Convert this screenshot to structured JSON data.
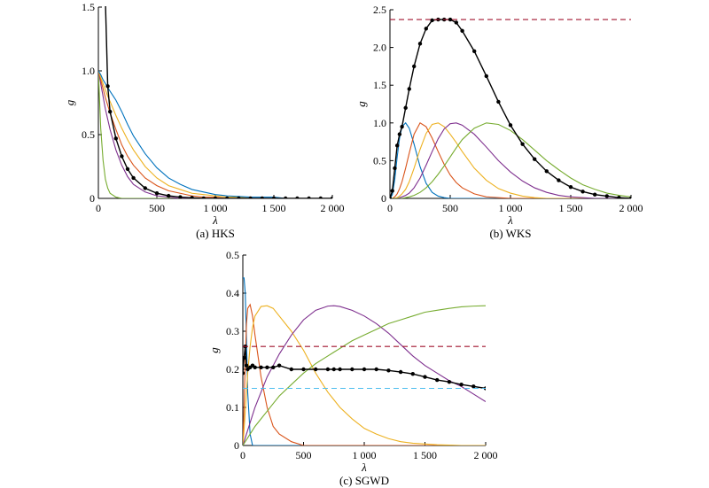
{
  "chart_data": [
    {
      "type": "line",
      "caption": "(a) HKS",
      "xlabel": "λ",
      "ylabel": "g",
      "xlim": [
        0,
        2000
      ],
      "ylim": [
        0,
        1.5
      ],
      "xticks": [
        0,
        500,
        1000,
        1500,
        2000
      ],
      "xtick_labels": [
        "0",
        "500",
        "1 000",
        "1 500",
        "2 000"
      ],
      "yticks": [
        0,
        0.5,
        1.0,
        1.5
      ],
      "ytick_labels": [
        "0",
        "0.5",
        "1.0",
        "1.5"
      ],
      "grid": false,
      "x": [
        0,
        20,
        40,
        60,
        80,
        100,
        150,
        200,
        250,
        300,
        400,
        500,
        600,
        700,
        800,
        900,
        1000,
        1100,
        1200,
        1300,
        1400,
        1500,
        1600,
        1700,
        1800,
        1900,
        2000
      ],
      "series": [
        {
          "color": "#77ac30",
          "style": "solid",
          "marker": false,
          "values": [
            1.0,
            0.55,
            0.3,
            0.15,
            0.08,
            0.04,
            0.01,
            0.0,
            0.0,
            0.0,
            0.0,
            0.0,
            0.0,
            0.0,
            0.0,
            0.0,
            0.0,
            0.0,
            0.0,
            0.0,
            0.0,
            0.0,
            0.0,
            0.0,
            0.0,
            0.0,
            0.0
          ]
        },
        {
          "color": "#7e2f8e",
          "style": "solid",
          "marker": false,
          "values": [
            1.0,
            0.9,
            0.8,
            0.7,
            0.62,
            0.54,
            0.38,
            0.26,
            0.17,
            0.11,
            0.05,
            0.02,
            0.01,
            0.0,
            0.0,
            0.0,
            0.0,
            0.0,
            0.0,
            0.0,
            0.0,
            0.0,
            0.0,
            0.0,
            0.0,
            0.0,
            0.0
          ]
        },
        {
          "color": "#d95319",
          "style": "solid",
          "marker": false,
          "values": [
            1.0,
            0.93,
            0.86,
            0.79,
            0.73,
            0.67,
            0.54,
            0.42,
            0.33,
            0.26,
            0.16,
            0.1,
            0.06,
            0.04,
            0.02,
            0.01,
            0.01,
            0.0,
            0.0,
            0.0,
            0.0,
            0.0,
            0.0,
            0.0,
            0.0,
            0.0,
            0.0
          ]
        },
        {
          "color": "#edb120",
          "style": "solid",
          "marker": false,
          "values": [
            1.0,
            0.95,
            0.9,
            0.85,
            0.8,
            0.76,
            0.65,
            0.55,
            0.46,
            0.38,
            0.25,
            0.16,
            0.1,
            0.07,
            0.04,
            0.03,
            0.02,
            0.01,
            0.01,
            0.0,
            0.0,
            0.0,
            0.0,
            0.0,
            0.0,
            0.0,
            0.0
          ]
        },
        {
          "color": "#0072bd",
          "style": "solid",
          "marker": false,
          "values": [
            1.0,
            0.97,
            0.93,
            0.9,
            0.87,
            0.84,
            0.77,
            0.68,
            0.58,
            0.49,
            0.35,
            0.24,
            0.16,
            0.11,
            0.07,
            0.05,
            0.03,
            0.02,
            0.015,
            0.01,
            0.01,
            0.01,
            0.0,
            0.0,
            0.0,
            0.0,
            0.0
          ]
        },
        {
          "color": "#000000",
          "style": "solid",
          "marker": true,
          "values": [
            null,
            null,
            null,
            1.55,
            0.88,
            0.68,
            0.47,
            0.33,
            0.23,
            0.16,
            0.08,
            0.04,
            0.02,
            0.01,
            0.005,
            0.0,
            0.0,
            0.0,
            0.0,
            0.0,
            0.0,
            0.0,
            0.0,
            0.0,
            0.0,
            0.0,
            0.0
          ]
        }
      ]
    },
    {
      "type": "line",
      "caption": "(b) WKS",
      "xlabel": "λ",
      "ylabel": "g",
      "xlim": [
        0,
        2000
      ],
      "ylim": [
        0,
        2.5
      ],
      "xticks": [
        0,
        500,
        1000,
        1500,
        2000
      ],
      "xtick_labels": [
        "0",
        "500",
        "1 000",
        "1 500",
        "2 000"
      ],
      "yticks": [
        0,
        0.5,
        1.0,
        1.5,
        2.0,
        2.5
      ],
      "ytick_labels": [
        "0",
        "0.5",
        "1.0",
        "1.5",
        "2.0",
        "2.5"
      ],
      "grid": false,
      "x": [
        0,
        20,
        40,
        60,
        80,
        100,
        130,
        160,
        200,
        250,
        300,
        350,
        400,
        450,
        500,
        550,
        600,
        700,
        800,
        900,
        1000,
        1100,
        1200,
        1300,
        1400,
        1500,
        1600,
        1700,
        1800,
        1900,
        2000
      ],
      "series": [
        {
          "color": "#0072bd",
          "style": "solid",
          "marker": false,
          "values": [
            0.0,
            0.05,
            0.25,
            0.55,
            0.8,
            0.95,
            1.0,
            0.93,
            0.72,
            0.42,
            0.2,
            0.08,
            0.03,
            0.01,
            0.0,
            0.0,
            0.0,
            0.0,
            0.0,
            0.0,
            0.0,
            0.0,
            0.0,
            0.0,
            0.0,
            0.0,
            0.0,
            0.0,
            0.0,
            0.0,
            0.0
          ]
        },
        {
          "color": "#d95319",
          "style": "solid",
          "marker": false,
          "values": [
            0.0,
            0.0,
            0.02,
            0.06,
            0.13,
            0.22,
            0.4,
            0.6,
            0.85,
            1.0,
            0.95,
            0.8,
            0.62,
            0.45,
            0.31,
            0.21,
            0.14,
            0.06,
            0.02,
            0.01,
            0.0,
            0.0,
            0.0,
            0.0,
            0.0,
            0.0,
            0.0,
            0.0,
            0.0,
            0.0,
            0.0
          ]
        },
        {
          "color": "#edb120",
          "style": "solid",
          "marker": false,
          "values": [
            0.0,
            0.0,
            0.0,
            0.01,
            0.03,
            0.06,
            0.12,
            0.22,
            0.4,
            0.65,
            0.86,
            0.98,
            1.0,
            0.95,
            0.85,
            0.74,
            0.62,
            0.4,
            0.24,
            0.13,
            0.07,
            0.03,
            0.01,
            0.0,
            0.0,
            0.0,
            0.0,
            0.0,
            0.0,
            0.0,
            0.0
          ]
        },
        {
          "color": "#7e2f8e",
          "style": "solid",
          "marker": false,
          "values": [
            0.0,
            0.0,
            0.0,
            0.0,
            0.01,
            0.02,
            0.04,
            0.07,
            0.14,
            0.27,
            0.44,
            0.62,
            0.79,
            0.92,
            0.99,
            1.0,
            0.97,
            0.85,
            0.68,
            0.5,
            0.35,
            0.23,
            0.14,
            0.08,
            0.04,
            0.02,
            0.01,
            0.0,
            0.0,
            0.0,
            0.0
          ]
        },
        {
          "color": "#77ac30",
          "style": "solid",
          "marker": false,
          "values": [
            0.0,
            0.0,
            0.0,
            0.0,
            0.0,
            0.0,
            0.01,
            0.02,
            0.04,
            0.08,
            0.14,
            0.22,
            0.32,
            0.43,
            0.55,
            0.67,
            0.78,
            0.93,
            1.0,
            0.98,
            0.9,
            0.78,
            0.64,
            0.5,
            0.38,
            0.27,
            0.18,
            0.12,
            0.07,
            0.04,
            0.02
          ]
        },
        {
          "color": "#000000",
          "style": "solid",
          "marker": true,
          "values": [
            0.0,
            0.1,
            0.4,
            0.7,
            0.85,
            0.95,
            1.2,
            1.45,
            1.75,
            2.05,
            2.25,
            2.36,
            2.37,
            2.37,
            2.37,
            2.33,
            2.22,
            1.95,
            1.62,
            1.28,
            0.97,
            0.72,
            0.52,
            0.36,
            0.24,
            0.15,
            0.09,
            0.05,
            0.03,
            0.01,
            0.0
          ]
        },
        {
          "color": "#a2142f",
          "style": "dashed",
          "marker": false,
          "values": [
            2.37,
            2.37,
            2.37,
            2.37,
            2.37,
            2.37,
            2.37,
            2.37,
            2.37,
            2.37,
            2.37,
            2.37,
            2.37,
            2.37,
            2.37,
            2.37,
            2.37,
            2.37,
            2.37,
            2.37,
            2.37,
            2.37,
            2.37,
            2.37,
            2.37,
            2.37,
            2.37,
            2.37,
            2.37,
            2.37,
            2.37
          ]
        }
      ]
    },
    {
      "type": "line",
      "caption": "(c) SGWD",
      "xlabel": "λ",
      "ylabel": "g",
      "xlim": [
        0,
        2000
      ],
      "ylim": [
        0,
        0.5
      ],
      "xticks": [
        0,
        500,
        1000,
        1500,
        2000
      ],
      "xtick_labels": [
        "0",
        "500",
        "1 000",
        "1 500",
        "2 000"
      ],
      "yticks": [
        0,
        0.1,
        0.2,
        0.3,
        0.4,
        0.5
      ],
      "ytick_labels": [
        "0",
        "0.1",
        "0.2",
        "0.3",
        "0.4",
        "0.5"
      ],
      "grid": false,
      "x": [
        0,
        10,
        20,
        30,
        40,
        60,
        80,
        100,
        150,
        200,
        250,
        300,
        400,
        500,
        600,
        700,
        750,
        800,
        900,
        1000,
        1100,
        1200,
        1300,
        1400,
        1500,
        1600,
        1700,
        1800,
        1900,
        2000
      ],
      "series": [
        {
          "color": "#0072bd",
          "style": "solid",
          "marker": false,
          "values": [
            0.44,
            0.44,
            0.4,
            0.28,
            0.14,
            0.03,
            0.0,
            0.0,
            0.0,
            0.0,
            0.0,
            0.0,
            0.0,
            0.0,
            0.0,
            0.0,
            0.0,
            0.0,
            0.0,
            0.0,
            0.0,
            0.0,
            0.0,
            0.0,
            0.0,
            0.0,
            0.0,
            0.0,
            0.0,
            0.0
          ]
        },
        {
          "color": "#d95319",
          "style": "solid",
          "marker": false,
          "values": [
            0.0,
            0.1,
            0.22,
            0.32,
            0.36,
            0.37,
            0.34,
            0.29,
            0.18,
            0.1,
            0.05,
            0.03,
            0.01,
            0.0,
            0.0,
            0.0,
            0.0,
            0.0,
            0.0,
            0.0,
            0.0,
            0.0,
            0.0,
            0.0,
            0.0,
            0.0,
            0.0,
            0.0,
            0.0,
            0.0
          ]
        },
        {
          "color": "#edb120",
          "style": "solid",
          "marker": false,
          "values": [
            0.0,
            0.04,
            0.09,
            0.14,
            0.19,
            0.26,
            0.31,
            0.34,
            0.365,
            0.367,
            0.36,
            0.34,
            0.3,
            0.25,
            0.19,
            0.14,
            0.12,
            0.1,
            0.07,
            0.045,
            0.03,
            0.018,
            0.01,
            0.006,
            0.004,
            0.002,
            0.001,
            0.0,
            0.0,
            0.0
          ]
        },
        {
          "color": "#7e2f8e",
          "style": "solid",
          "marker": false,
          "values": [
            0.0,
            0.01,
            0.02,
            0.03,
            0.04,
            0.06,
            0.08,
            0.1,
            0.14,
            0.18,
            0.21,
            0.24,
            0.29,
            0.33,
            0.355,
            0.366,
            0.367,
            0.365,
            0.355,
            0.34,
            0.32,
            0.295,
            0.265,
            0.235,
            0.21,
            0.19,
            0.17,
            0.155,
            0.135,
            0.115
          ]
        },
        {
          "color": "#77ac30",
          "style": "solid",
          "marker": false,
          "values": [
            0.0,
            0.005,
            0.01,
            0.015,
            0.02,
            0.03,
            0.04,
            0.05,
            0.07,
            0.09,
            0.11,
            0.13,
            0.16,
            0.19,
            0.215,
            0.235,
            0.245,
            0.255,
            0.275,
            0.29,
            0.305,
            0.32,
            0.33,
            0.34,
            0.35,
            0.355,
            0.36,
            0.364,
            0.366,
            0.367
          ]
        },
        {
          "color": "#000000",
          "style": "solid",
          "marker": true,
          "values": [
            0.19,
            0.23,
            0.26,
            0.21,
            0.2,
            0.205,
            0.21,
            0.205,
            0.205,
            0.205,
            0.205,
            0.21,
            0.2,
            0.2,
            0.2,
            0.2,
            0.2,
            0.2,
            0.2,
            0.2,
            0.2,
            0.197,
            0.193,
            0.188,
            0.18,
            0.172,
            0.167,
            0.16,
            0.155,
            0.15
          ]
        },
        {
          "color": "#a2142f",
          "style": "dashed",
          "marker": false,
          "values": [
            0.26,
            0.26,
            0.26,
            0.26,
            0.26,
            0.26,
            0.26,
            0.26,
            0.26,
            0.26,
            0.26,
            0.26,
            0.26,
            0.26,
            0.26,
            0.26,
            0.26,
            0.26,
            0.26,
            0.26,
            0.26,
            0.26,
            0.26,
            0.26,
            0.26,
            0.26,
            0.26,
            0.26,
            0.26,
            0.26
          ]
        },
        {
          "color": "#4dbeee",
          "style": "dashed",
          "marker": false,
          "values": [
            0.15,
            0.15,
            0.15,
            0.15,
            0.15,
            0.15,
            0.15,
            0.15,
            0.15,
            0.15,
            0.15,
            0.15,
            0.15,
            0.15,
            0.15,
            0.15,
            0.15,
            0.15,
            0.15,
            0.15,
            0.15,
            0.15,
            0.15,
            0.15,
            0.15,
            0.15,
            0.15,
            0.15,
            0.15,
            0.15
          ]
        }
      ]
    }
  ]
}
